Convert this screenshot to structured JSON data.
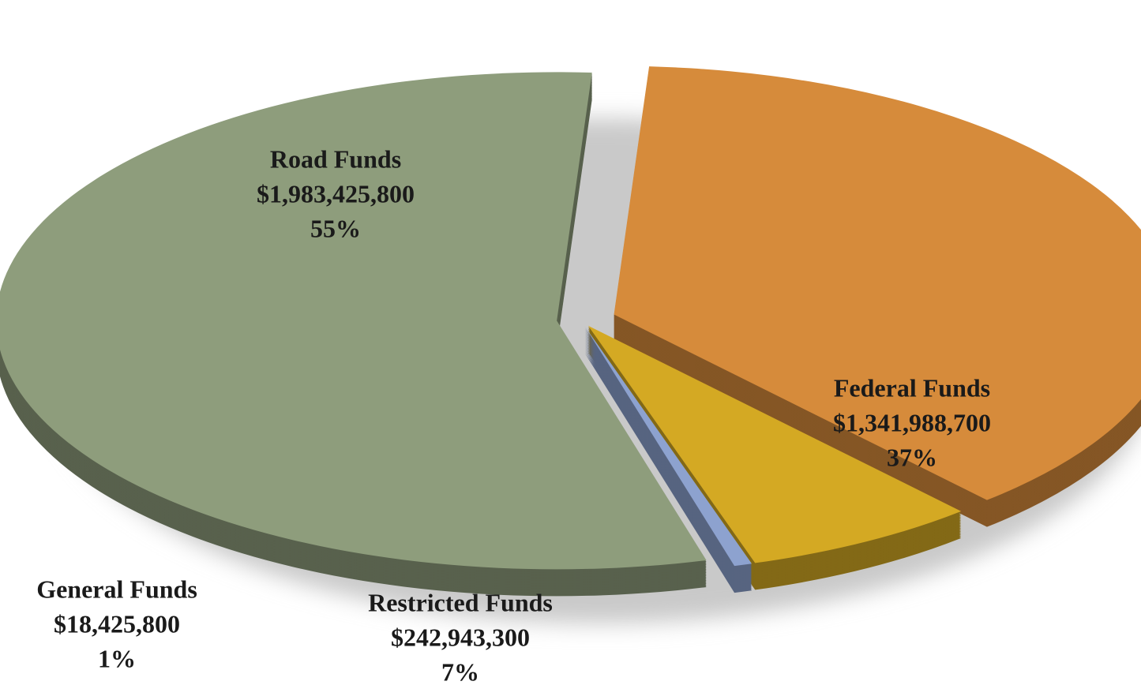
{
  "chart_data": {
    "type": "pie",
    "categories": [
      "Federal Funds",
      "Restricted Funds",
      "General Funds",
      "Road Funds"
    ],
    "values": [
      37,
      7,
      1,
      55
    ],
    "value_labels": [
      "37%",
      "7%",
      "1%",
      "55%"
    ],
    "amounts": [
      1341988700,
      242943300,
      18425800,
      1983425800
    ],
    "amount_labels": [
      "$1,341,988,700",
      "$242,943,300",
      "$18,425,800",
      "$1,983,425,800"
    ],
    "colors": [
      "#d68b3b",
      "#d4a923",
      "#8da2cf",
      "#8e9d7c"
    ]
  }
}
